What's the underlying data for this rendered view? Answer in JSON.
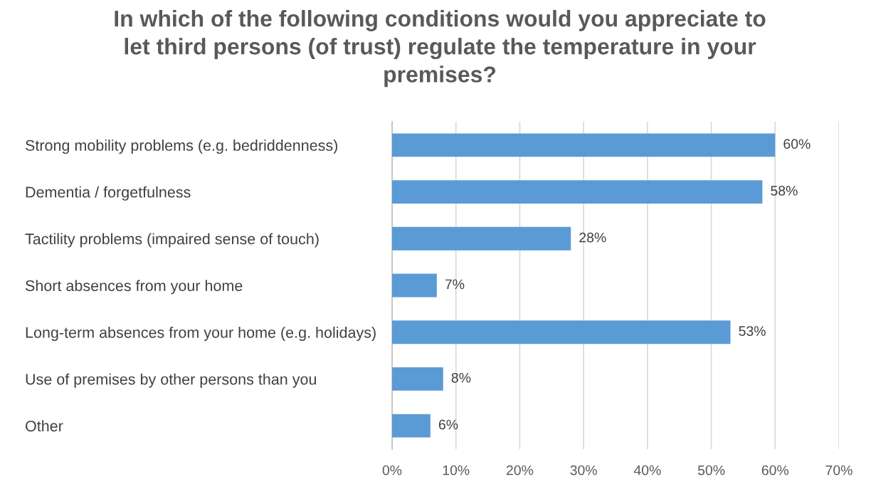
{
  "chart_data": {
    "type": "bar",
    "orientation": "horizontal",
    "title": "In which of the following conditions would you appreciate to let third persons (of trust) regulate the temperature in your premises?",
    "categories": [
      "Strong mobility problems (e.g. bedriddenness)",
      "Dementia / forgetfulness",
      "Tactility problems (impaired sense of touch)",
      "Short absences from your home",
      "Long-term absences from your home (e.g. holidays)",
      "Use of premises by other persons than you",
      "Other"
    ],
    "values": [
      60,
      58,
      28,
      7,
      53,
      8,
      6
    ],
    "value_labels": [
      "60%",
      "58%",
      "28%",
      "7%",
      "53%",
      "8%",
      "6%"
    ],
    "color": "#5b9bd5",
    "xlim": [
      0,
      70
    ],
    "xticks": [
      {
        "value": 0,
        "label": "0%"
      },
      {
        "value": 10,
        "label": "10%"
      },
      {
        "value": 20,
        "label": "20%"
      },
      {
        "value": 30,
        "label": "30%"
      },
      {
        "value": 40,
        "label": "40%"
      },
      {
        "value": 50,
        "label": "50%"
      },
      {
        "value": 60,
        "label": "60%"
      },
      {
        "value": 70,
        "label": "70%"
      }
    ],
    "grid": "x"
  }
}
